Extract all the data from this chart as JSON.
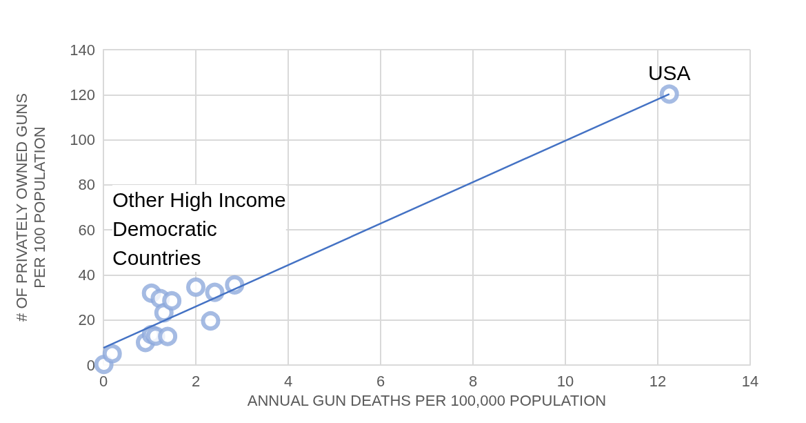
{
  "chart_data": {
    "type": "scatter",
    "xlabel": "ANNUAL GUN DEATHS PER 100,000 POPULATION",
    "ylabel": "# OF PRIVATELY OWNED GUNS PER 100 POPULATION",
    "xlim": [
      0,
      14
    ],
    "xticks": [
      0,
      2,
      4,
      6,
      8,
      10,
      12,
      14
    ],
    "ylim": [
      0,
      140
    ],
    "yticks": [
      0,
      20,
      40,
      60,
      80,
      100,
      120,
      140
    ],
    "grid": true,
    "marker": "circle",
    "series": [
      {
        "color": "#8faadc",
        "x": [
          0.01,
          0.19,
          0.91,
          1.04,
          1.04,
          1.13,
          1.23,
          1.31,
          1.39,
          1.48,
          2.0,
          2.32,
          2.41,
          2.84,
          12.25
        ],
        "values": [
          0.3,
          5.0,
          10.0,
          31.9,
          13.5,
          12.8,
          29.5,
          23.2,
          12.7,
          28.5,
          34.6,
          19.6,
          32.3,
          35.6,
          120.3
        ]
      },
      {
        "type": "line",
        "color": "#4472c4",
        "line_style": "solid",
        "marker": "none",
        "x": [
          0,
          12.25
        ],
        "values": [
          7.6,
          120.3
        ]
      }
    ],
    "annotations": [
      {
        "text": "USA",
        "x": 12.25,
        "y": 120.3
      },
      "Other High Income Democratic Countries"
    ]
  }
}
